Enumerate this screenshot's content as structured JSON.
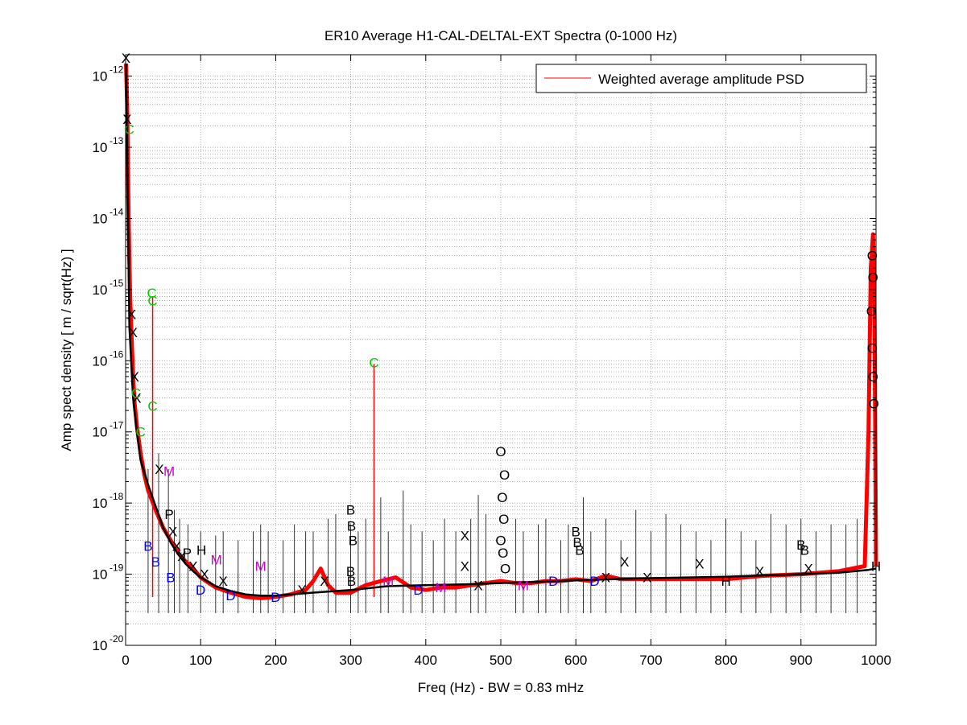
{
  "chart_data": {
    "type": "line",
    "title": "ER10 Average H1-CAL-DELTAL-EXT Spectra (0-1000 Hz)",
    "xlabel": "Freq (Hz) - BW = 0.83 mHz",
    "ylabel": "Amp spect density [ m / sqrt(Hz) ]",
    "xlim": [
      0,
      1000
    ],
    "ylim": [
      1e-20,
      2e-12
    ],
    "yscale": "log",
    "grid": true,
    "legend_position": "top-right",
    "x_ticks": [
      "0",
      "100",
      "200",
      "300",
      "400",
      "500",
      "600",
      "700",
      "800",
      "900",
      "1000"
    ],
    "y_ticks": [
      {
        "base": "10",
        "exp": "-20",
        "value": 1e-20
      },
      {
        "base": "10",
        "exp": "-19",
        "value": 1e-19
      },
      {
        "base": "10",
        "exp": "-18",
        "value": 1e-18
      },
      {
        "base": "10",
        "exp": "-17",
        "value": 1e-17
      },
      {
        "base": "10",
        "exp": "-16",
        "value": 1e-16
      },
      {
        "base": "10",
        "exp": "-15",
        "value": 1e-15
      },
      {
        "base": "10",
        "exp": "-14",
        "value": 1e-14
      },
      {
        "base": "10",
        "exp": "-13",
        "value": 1e-13
      },
      {
        "base": "10",
        "exp": "-12",
        "value": 1e-12
      }
    ],
    "series": [
      {
        "name": "Weighted average amplitude PSD",
        "color": "#ff0000",
        "x": [
          0.5,
          2,
          4,
          6,
          8,
          10,
          12,
          15,
          20,
          25,
          30,
          40,
          50,
          60,
          70,
          80,
          90,
          100,
          120,
          140,
          160,
          180,
          200,
          220,
          240,
          250,
          260,
          270,
          280,
          300,
          320,
          340,
          360,
          380,
          400,
          420,
          440,
          460,
          480,
          500,
          520,
          540,
          560,
          580,
          600,
          620,
          640,
          660,
          700,
          750,
          800,
          850,
          900,
          950,
          985,
          990,
          993,
          996,
          998,
          1000
        ],
        "y": [
          1.5e-12,
          4e-13,
          1e-14,
          8e-16,
          2e-16,
          6e-17,
          2.5e-17,
          1.2e-17,
          5e-18,
          2.5e-18,
          1.5e-18,
          8e-19,
          4.5e-19,
          3e-19,
          2e-19,
          1.5e-19,
          1.2e-19,
          9e-20,
          6.5e-20,
          5.5e-20,
          4.8e-20,
          4.6e-20,
          4.8e-20,
          5.2e-20,
          6e-20,
          8e-20,
          1.2e-19,
          7e-20,
          5.5e-20,
          5.5e-20,
          7e-20,
          8e-20,
          9e-20,
          6.5e-20,
          6e-20,
          6.5e-20,
          6.5e-20,
          7e-20,
          7.5e-20,
          8e-20,
          7.5e-20,
          7.5e-20,
          8e-20,
          8e-20,
          8.5e-20,
          8e-20,
          9.5e-20,
          8.5e-20,
          8.5e-20,
          8.5e-20,
          8.5e-20,
          9.5e-20,
          1e-19,
          1.1e-19,
          1.3e-19,
          1e-17,
          2e-15,
          6e-15,
          5e-16,
          1.3e-19
        ]
      },
      {
        "name": "",
        "color": "#000000",
        "x": [
          0.5,
          5,
          10,
          15,
          20,
          30,
          40,
          50,
          60,
          70,
          80,
          90,
          100,
          120,
          140,
          160,
          180,
          200,
          250,
          300,
          350,
          400,
          450,
          500,
          550,
          600,
          650,
          700,
          750,
          800,
          850,
          900,
          950,
          990,
          1000
        ],
        "y": [
          1.5e-12,
          3e-16,
          3e-17,
          1e-17,
          4e-18,
          1.8e-18,
          9e-19,
          4.5e-19,
          2.8e-19,
          1.9e-19,
          1.4e-19,
          1.1e-19,
          9e-20,
          6.8e-20,
          5.8e-20,
          5.2e-20,
          5e-20,
          5e-20,
          5.5e-20,
          6e-20,
          6.8e-20,
          7e-20,
          7.2e-20,
          7.5e-20,
          7.8e-20,
          8.2e-20,
          8.5e-20,
          8.8e-20,
          9e-20,
          9.2e-20,
          9.6e-20,
          1e-19,
          1.05e-19,
          1.15e-19,
          1.2e-19
        ]
      }
    ],
    "lines": {
      "color": "#000000",
      "x": [
        30,
        44,
        57,
        65,
        72,
        83,
        100,
        120,
        130,
        150,
        170,
        180,
        190,
        210,
        225,
        240,
        250,
        270,
        280,
        300,
        310,
        320,
        340,
        350,
        370,
        380,
        395,
        410,
        425,
        440,
        460,
        470,
        480,
        520,
        530,
        550,
        560,
        580,
        590,
        610,
        620,
        640,
        660,
        680,
        700,
        720,
        740,
        760,
        780,
        800,
        820,
        840,
        860,
        880,
        900,
        920,
        940,
        960,
        975
      ],
      "y": [
        3e-18,
        5e-18,
        3e-18,
        8e-19,
        6e-19,
        5e-19,
        4e-19,
        3.5e-19,
        4e-19,
        3e-19,
        4e-19,
        5e-19,
        4e-19,
        3e-19,
        5e-19,
        4e-19,
        4e-19,
        6e-19,
        7e-19,
        5e-19,
        4e-19,
        6e-19,
        1.2e-18,
        4e-19,
        1.5e-18,
        5e-19,
        4e-19,
        3e-19,
        6e-19,
        4e-19,
        6e-19,
        1.3e-18,
        7e-19,
        6e-19,
        4e-19,
        5e-19,
        6e-19,
        3e-19,
        5e-19,
        1.2e-18,
        4e-19,
        6e-19,
        3e-19,
        8e-19,
        4e-19,
        7e-19,
        5e-19,
        4e-19,
        3e-19,
        6e-19,
        4e-19,
        3e-19,
        7e-19,
        5e-19,
        6e-19,
        4e-19,
        5e-19,
        5e-19,
        6e-19
      ]
    },
    "peaks": {
      "color": "#ff0000",
      "x": [
        36,
        331
      ],
      "y": [
        8e-16,
        9e-17
      ]
    },
    "markers": [
      {
        "label": "X",
        "color": "#000000",
        "x": 0.5,
        "y": 1.8e-12
      },
      {
        "label": "X",
        "color": "#000000",
        "x": 2,
        "y": 2.5e-13
      },
      {
        "label": "C",
        "color": "#00cc00",
        "x": 5,
        "y": 1.8e-13
      },
      {
        "label": "X",
        "color": "#000000",
        "x": 8,
        "y": 4.5e-16
      },
      {
        "label": "X",
        "color": "#000000",
        "x": 10,
        "y": 2.5e-16
      },
      {
        "label": "X",
        "color": "#000000",
        "x": 12,
        "y": 6e-17
      },
      {
        "label": "X",
        "color": "#000000",
        "x": 15,
        "y": 3e-17
      },
      {
        "label": "C",
        "color": "#00cc00",
        "x": 14,
        "y": 3.5e-17
      },
      {
        "label": "C",
        "color": "#00cc00",
        "x": 20,
        "y": 1e-17
      },
      {
        "label": "C",
        "color": "#00cc00",
        "x": 35,
        "y": 9e-16
      },
      {
        "label": "C",
        "color": "#00cc00",
        "x": 36,
        "y": 7e-16
      },
      {
        "label": "C",
        "color": "#00cc00",
        "x": 36,
        "y": 2.3e-17
      },
      {
        "label": "C",
        "color": "#00cc00",
        "x": 331,
        "y": 9.5e-17
      },
      {
        "label": "X",
        "color": "#000000",
        "x": 45,
        "y": 3e-18
      },
      {
        "label": "M",
        "color": "#cc00cc",
        "x": 58,
        "y": 2.8e-18
      },
      {
        "label": "M",
        "color": "#cc00cc",
        "x": 121,
        "y": 1.6e-19
      },
      {
        "label": "M",
        "color": "#cc00cc",
        "x": 180,
        "y": 1.3e-19
      },
      {
        "label": "P",
        "color": "#000000",
        "x": 58,
        "y": 7e-19
      },
      {
        "label": "P",
        "color": "#000000",
        "x": 82,
        "y": 2e-19
      },
      {
        "label": "H",
        "color": "#000000",
        "x": 101,
        "y": 2.2e-19
      },
      {
        "label": "X",
        "color": "#000000",
        "x": 63,
        "y": 4e-19
      },
      {
        "label": "X",
        "color": "#000000",
        "x": 68,
        "y": 2.5e-19
      },
      {
        "label": "X",
        "color": "#000000",
        "x": 75,
        "y": 1.8e-19
      },
      {
        "label": "X",
        "color": "#000000",
        "x": 90,
        "y": 1.3e-19
      },
      {
        "label": "X",
        "color": "#000000",
        "x": 105,
        "y": 1e-19
      },
      {
        "label": "X",
        "color": "#000000",
        "x": 130,
        "y": 8e-20
      },
      {
        "label": "B",
        "color": "#0000ff",
        "x": 30,
        "y": 2.5e-19
      },
      {
        "label": "B",
        "color": "#0000ff",
        "x": 40,
        "y": 1.5e-19
      },
      {
        "label": "B",
        "color": "#0000ff",
        "x": 60,
        "y": 9e-20
      },
      {
        "label": "D",
        "color": "#0000ff",
        "x": 100,
        "y": 6e-20
      },
      {
        "label": "D",
        "color": "#0000ff",
        "x": 140,
        "y": 5e-20
      },
      {
        "label": "D",
        "color": "#0000ff",
        "x": 200,
        "y": 4.8e-20
      },
      {
        "label": "X",
        "color": "#000000",
        "x": 235,
        "y": 6e-20
      },
      {
        "label": "X",
        "color": "#000000",
        "x": 265,
        "y": 8e-20
      },
      {
        "label": "B",
        "color": "#000000",
        "x": 300,
        "y": 8e-19
      },
      {
        "label": "B",
        "color": "#000000",
        "x": 301,
        "y": 4.8e-19
      },
      {
        "label": "B",
        "color": "#000000",
        "x": 303,
        "y": 3e-19
      },
      {
        "label": "B",
        "color": "#000000",
        "x": 300,
        "y": 1.1e-19
      },
      {
        "label": "B",
        "color": "#000000",
        "x": 301,
        "y": 8e-20
      },
      {
        "label": "M",
        "color": "#cc00cc",
        "x": 350,
        "y": 8e-20
      },
      {
        "label": "D",
        "color": "#0000ff",
        "x": 390,
        "y": 6e-20
      },
      {
        "label": "M",
        "color": "#cc00cc",
        "x": 420,
        "y": 6.5e-20
      },
      {
        "label": "X",
        "color": "#000000",
        "x": 452,
        "y": 3.5e-19
      },
      {
        "label": "X",
        "color": "#000000",
        "x": 452,
        "y": 1.3e-19
      },
      {
        "label": "X",
        "color": "#000000",
        "x": 470,
        "y": 7e-20
      },
      {
        "label": "O",
        "color": "#000000",
        "x": 500,
        "y": 5.3e-18
      },
      {
        "label": "O",
        "color": "#000000",
        "x": 505,
        "y": 2.5e-18
      },
      {
        "label": "O",
        "color": "#000000",
        "x": 502,
        "y": 1.2e-18
      },
      {
        "label": "O",
        "color": "#000000",
        "x": 504,
        "y": 6e-19
      },
      {
        "label": "O",
        "color": "#000000",
        "x": 500,
        "y": 3e-19
      },
      {
        "label": "O",
        "color": "#000000",
        "x": 503,
        "y": 2e-19
      },
      {
        "label": "O",
        "color": "#000000",
        "x": 506,
        "y": 1.2e-19
      },
      {
        "label": "M",
        "color": "#cc00cc",
        "x": 530,
        "y": 7e-20
      },
      {
        "label": "D",
        "color": "#0000ff",
        "x": 570,
        "y": 8e-20
      },
      {
        "label": "B",
        "color": "#000000",
        "x": 600,
        "y": 4e-19
      },
      {
        "label": "B",
        "color": "#000000",
        "x": 602,
        "y": 2.8e-19
      },
      {
        "label": "B",
        "color": "#000000",
        "x": 605,
        "y": 2.2e-19
      },
      {
        "label": "D",
        "color": "#0000ff",
        "x": 625,
        "y": 8e-20
      },
      {
        "label": "X",
        "color": "#000000",
        "x": 640,
        "y": 9e-20
      },
      {
        "label": "X",
        "color": "#000000",
        "x": 665,
        "y": 1.5e-19
      },
      {
        "label": "X",
        "color": "#000000",
        "x": 695,
        "y": 9e-20
      },
      {
        "label": "X",
        "color": "#000000",
        "x": 765,
        "y": 1.4e-19
      },
      {
        "label": "H",
        "color": "#000000",
        "x": 800,
        "y": 8e-20
      },
      {
        "label": "X",
        "color": "#000000",
        "x": 845,
        "y": 1.1e-19
      },
      {
        "label": "B",
        "color": "#000000",
        "x": 900,
        "y": 2.6e-19
      },
      {
        "label": "B",
        "color": "#000000",
        "x": 905,
        "y": 2.2e-19
      },
      {
        "label": "X",
        "color": "#000000",
        "x": 910,
        "y": 1.2e-19
      },
      {
        "label": "O",
        "color": "#000000",
        "x": 995,
        "y": 3e-15
      },
      {
        "label": "O",
        "color": "#000000",
        "x": 996,
        "y": 1.5e-15
      },
      {
        "label": "O",
        "color": "#000000",
        "x": 994,
        "y": 5e-16
      },
      {
        "label": "O",
        "color": "#000000",
        "x": 995,
        "y": 1.5e-16
      },
      {
        "label": "O",
        "color": "#000000",
        "x": 996,
        "y": 6e-17
      },
      {
        "label": "O",
        "color": "#000000",
        "x": 997,
        "y": 2.5e-17
      },
      {
        "label": "H",
        "color": "#000000",
        "x": 1000,
        "y": 1.3e-19
      }
    ]
  }
}
